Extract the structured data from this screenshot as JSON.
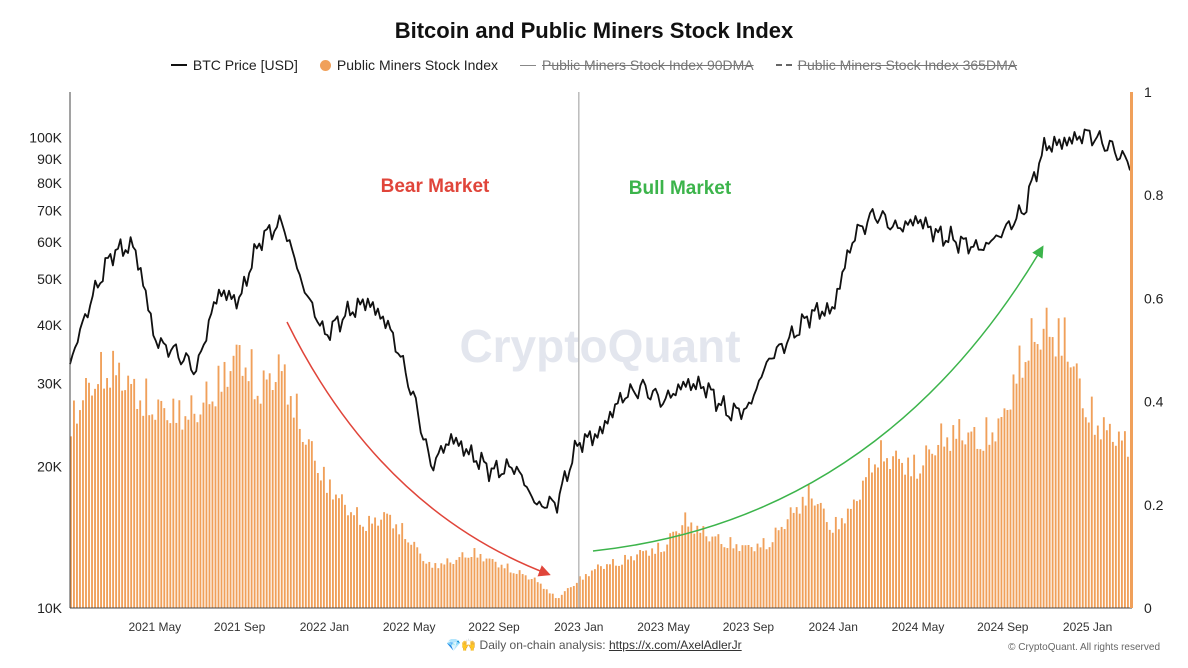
{
  "title": "Bitcoin and Public Miners Stock Index",
  "legend": [
    {
      "label": "BTC Price [USD]",
      "style": "line",
      "color": "#111111",
      "hidden": false
    },
    {
      "label": "Public Miners Stock Index",
      "style": "dot",
      "color": "#f0a05a",
      "hidden": false
    },
    {
      "label": "Public Miners Stock Index 90DMA",
      "style": "gray-line",
      "color": "#888888",
      "hidden": true
    },
    {
      "label": "Public Miners Stock Index 365DMA",
      "style": "dash",
      "color": "#666666",
      "hidden": true
    }
  ],
  "annotations": {
    "bear": {
      "text": "Bear Market",
      "color": "#e0453a"
    },
    "bull": {
      "text": "Bull Market",
      "color": "#3cb44b"
    }
  },
  "watermark": "CryptoQuant",
  "footer": {
    "prefix": "Daily on-chain analysis:",
    "link": "https://x.com/AxelAdlerJr",
    "icons": "💎🙌"
  },
  "copyright": "© CryptoQuant. All rights reserved",
  "chart_data": {
    "type": "line",
    "x_ticks": [
      "2021 May",
      "2021 Sep",
      "2022 Jan",
      "2022 May",
      "2022 Sep",
      "2023 Jan",
      "2023 May",
      "2023 Sep",
      "2024 Jan",
      "2024 May",
      "2024 Sep",
      "2025 Jan"
    ],
    "x_range": [
      "2021-01",
      "2025-03"
    ],
    "y_left": {
      "scale": "log",
      "range": [
        10000,
        125000
      ],
      "ticks": [
        "10K",
        "20K",
        "30K",
        "40K",
        "50K",
        "60K",
        "70K",
        "80K",
        "90K",
        "100K"
      ],
      "tick_values": [
        10000,
        20000,
        30000,
        40000,
        50000,
        60000,
        70000,
        80000,
        90000,
        100000
      ]
    },
    "y_right": {
      "scale": "linear",
      "range": [
        0,
        1
      ],
      "ticks": [
        "0",
        "0.2",
        "0.4",
        "0.6",
        "0.8",
        "1"
      ],
      "tick_values": [
        0,
        0.2,
        0.4,
        0.6,
        0.8,
        1
      ]
    },
    "grid": false,
    "legend_position": "top-center",
    "series": [
      {
        "name": "BTC Price [USD]",
        "axis": "left",
        "color": "#111111",
        "x": [
          "2021-01",
          "2021-02",
          "2021-03",
          "2021-04",
          "2021-05",
          "2021-06",
          "2021-07",
          "2021-08",
          "2021-09",
          "2021-10",
          "2021-11",
          "2021-12",
          "2022-01",
          "2022-02",
          "2022-03",
          "2022-04",
          "2022-05",
          "2022-06",
          "2022-07",
          "2022-08",
          "2022-09",
          "2022-10",
          "2022-11",
          "2022-12",
          "2023-01",
          "2023-02",
          "2023-03",
          "2023-04",
          "2023-05",
          "2023-06",
          "2023-07",
          "2023-08",
          "2023-09",
          "2023-10",
          "2023-11",
          "2023-12",
          "2024-01",
          "2024-02",
          "2024-03",
          "2024-04",
          "2024-05",
          "2024-06",
          "2024-07",
          "2024-08",
          "2024-09",
          "2024-10",
          "2024-11",
          "2024-12",
          "2025-01",
          "2025-02",
          "2025-03"
        ],
        "values": [
          33000,
          45000,
          57000,
          59000,
          37000,
          35000,
          32000,
          47000,
          45000,
          61000,
          66000,
          48000,
          38000,
          42000,
          45000,
          40000,
          30000,
          20000,
          23000,
          21000,
          19500,
          20000,
          16500,
          16800,
          22500,
          23500,
          28000,
          29500,
          27500,
          30000,
          29500,
          26000,
          26500,
          34000,
          37500,
          42500,
          43000,
          62000,
          69000,
          64000,
          67000,
          62000,
          60000,
          58000,
          63000,
          70000,
          96000,
          98000,
          102000,
          96000,
          88000
        ]
      },
      {
        "name": "Public Miners Stock Index",
        "axis": "right",
        "color": "#f0a05a",
        "x": [
          "2021-01",
          "2021-02",
          "2021-03",
          "2021-04",
          "2021-05",
          "2021-06",
          "2021-07",
          "2021-08",
          "2021-09",
          "2021-10",
          "2021-11",
          "2021-12",
          "2022-01",
          "2022-02",
          "2022-03",
          "2022-04",
          "2022-05",
          "2022-06",
          "2022-07",
          "2022-08",
          "2022-09",
          "2022-10",
          "2022-11",
          "2022-12",
          "2023-01",
          "2023-02",
          "2023-03",
          "2023-04",
          "2023-05",
          "2023-06",
          "2023-07",
          "2023-08",
          "2023-09",
          "2023-10",
          "2023-11",
          "2023-12",
          "2024-01",
          "2024-02",
          "2024-03",
          "2024-04",
          "2024-05",
          "2024-06",
          "2024-07",
          "2024-08",
          "2024-09",
          "2024-10",
          "2024-11",
          "2024-12",
          "2025-01",
          "2025-02",
          "2025-03"
        ],
        "values": [
          0.4,
          0.48,
          0.52,
          0.47,
          0.43,
          0.42,
          0.42,
          0.48,
          0.55,
          0.47,
          0.52,
          0.38,
          0.28,
          0.22,
          0.18,
          0.2,
          0.15,
          0.09,
          0.1,
          0.12,
          0.1,
          0.08,
          0.06,
          0.02,
          0.06,
          0.09,
          0.1,
          0.12,
          0.13,
          0.19,
          0.16,
          0.14,
          0.13,
          0.14,
          0.2,
          0.25,
          0.17,
          0.22,
          0.33,
          0.32,
          0.3,
          0.36,
          0.38,
          0.36,
          0.4,
          0.55,
          0.6,
          0.58,
          0.42,
          0.38,
          0.35
        ]
      }
    ]
  }
}
